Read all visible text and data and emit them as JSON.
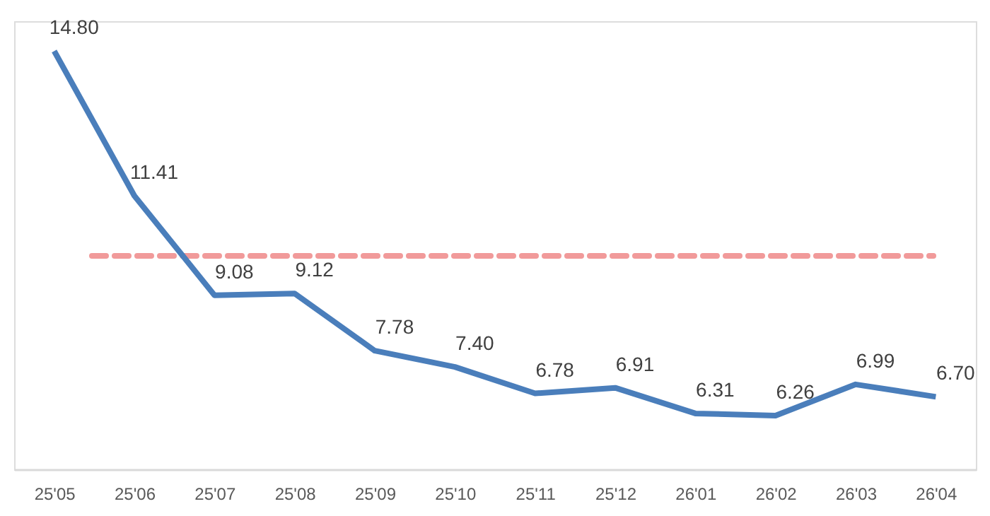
{
  "chart_data": {
    "type": "line",
    "categories": [
      "25'05",
      "25'06",
      "25'07",
      "25'08",
      "25'09",
      "25'10",
      "25'11",
      "25'12",
      "26'01",
      "26'02",
      "26'03",
      "26'04"
    ],
    "series": [
      {
        "color": "#4a7ebb",
        "values": [
          14.8,
          11.41,
          9.08,
          9.12,
          7.78,
          7.4,
          6.78,
          6.91,
          6.31,
          6.26,
          6.99,
          6.7
        ],
        "value_labels": [
          "14.80",
          "11.41",
          "9.08",
          "9.12",
          "7.78",
          "7.40",
          "6.78",
          "6.91",
          "6.31",
          "6.26",
          "6.99",
          "6.70"
        ]
      }
    ],
    "ylim": [
      5,
      15.5
    ],
    "tick_labels": "x",
    "grid": false,
    "marker": "none",
    "line_style": "solid",
    "ref_lines": [
      {
        "axis": "y",
        "value": 10,
        "color": "#f19a9a",
        "line_style": "dashed"
      }
    ]
  }
}
